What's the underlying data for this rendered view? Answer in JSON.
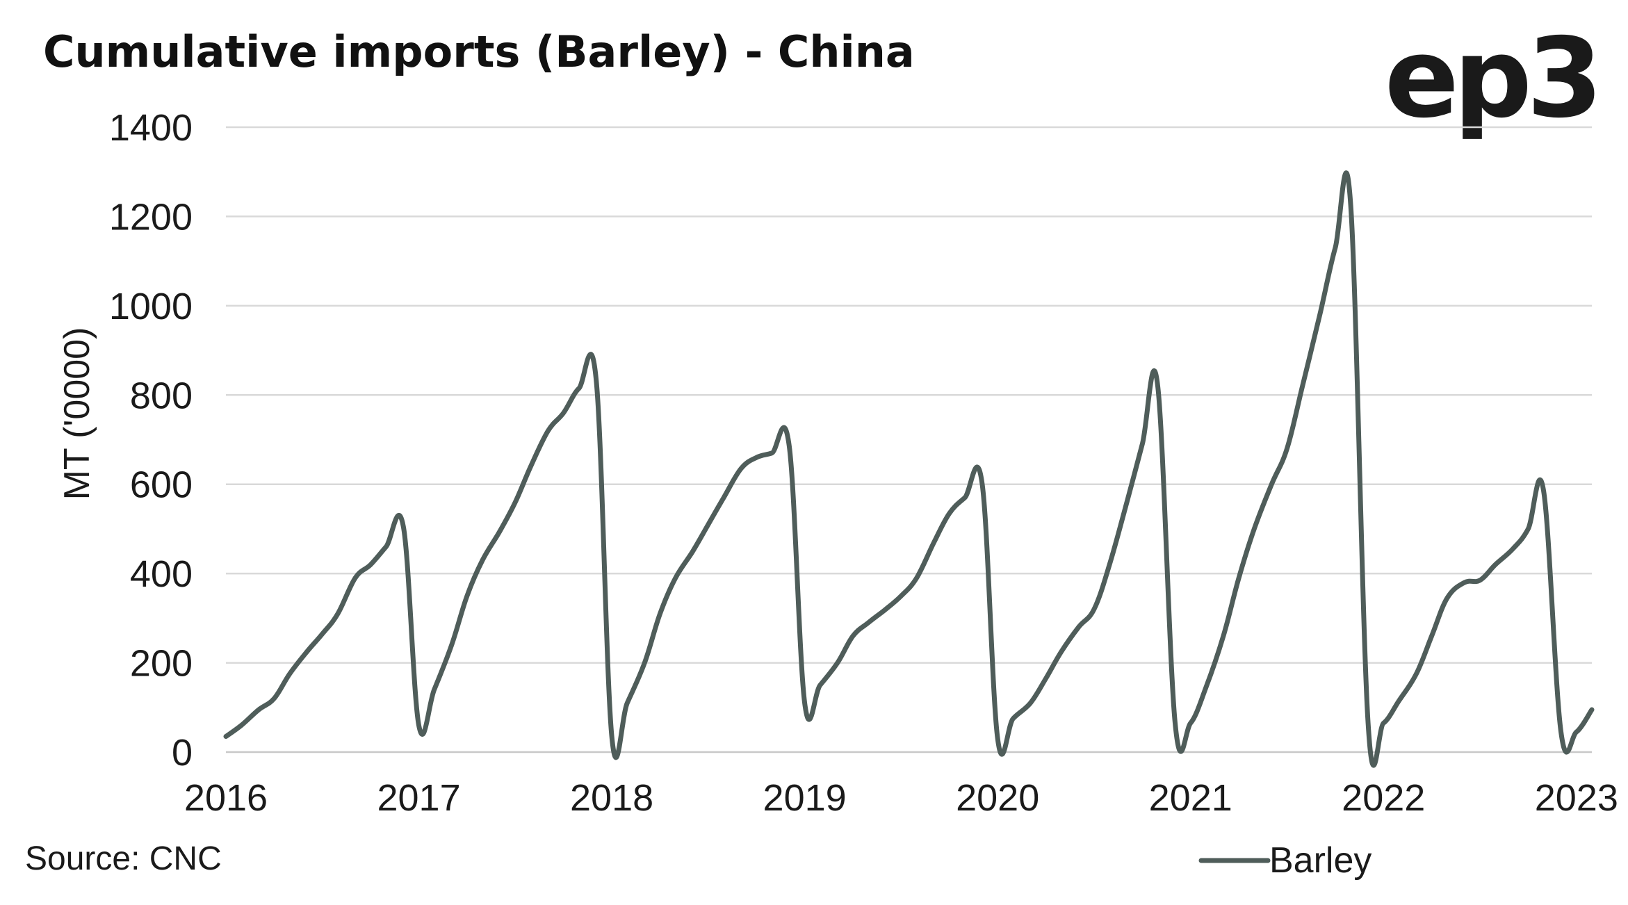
{
  "chart_data": {
    "type": "line",
    "title": "Cumulative imports (Barley) - China",
    "ylabel": "MT ('0000)",
    "xlabel": "",
    "ylim": [
      0,
      1400
    ],
    "yticks": [
      "0",
      "200",
      "400",
      "600",
      "800",
      "1000",
      "1200",
      "1400"
    ],
    "xticks": [
      "2016",
      "2017",
      "2018",
      "2019",
      "2020",
      "2021",
      "2022",
      "2023"
    ],
    "grid": true,
    "legend_position": "bottom-right",
    "series": [
      {
        "name": "Barley",
        "color": "#4f5d5a",
        "x": [
          2016.0,
          2016.08,
          2016.17,
          2016.25,
          2016.33,
          2016.42,
          2016.5,
          2016.58,
          2016.67,
          2016.75,
          2016.83,
          2016.92,
          2017.0,
          2017.08,
          2017.17,
          2017.25,
          2017.33,
          2017.42,
          2017.5,
          2017.58,
          2017.67,
          2017.75,
          2017.83,
          2017.92,
          2018.0,
          2018.08,
          2018.17,
          2018.25,
          2018.33,
          2018.42,
          2018.5,
          2018.58,
          2018.67,
          2018.75,
          2018.83,
          2018.92,
          2019.0,
          2019.08,
          2019.17,
          2019.25,
          2019.33,
          2019.42,
          2019.5,
          2019.58,
          2019.67,
          2019.75,
          2019.83,
          2019.92,
          2020.0,
          2020.08,
          2020.17,
          2020.25,
          2020.33,
          2020.42,
          2020.5,
          2020.58,
          2020.67,
          2020.75,
          2020.83,
          2020.92,
          2021.0,
          2021.08,
          2021.17,
          2021.25,
          2021.33,
          2021.42,
          2021.5,
          2021.58,
          2021.67,
          2021.75,
          2021.83,
          2021.92,
          2022.0,
          2022.08,
          2022.17,
          2022.25,
          2022.33,
          2022.42,
          2022.5,
          2022.58,
          2022.67,
          2022.75,
          2022.83,
          2022.92,
          2023.0,
          2023.08
        ],
        "values": [
          35,
          60,
          95,
          120,
          175,
          225,
          265,
          310,
          390,
          420,
          460,
          505,
          60,
          140,
          240,
          350,
          430,
          495,
          560,
          640,
          720,
          760,
          815,
          830,
          35,
          110,
          200,
          310,
          390,
          450,
          510,
          570,
          635,
          660,
          670,
          685,
          110,
          150,
          200,
          260,
          290,
          320,
          350,
          390,
          470,
          535,
          570,
          600,
          30,
          75,
          110,
          165,
          225,
          280,
          320,
          420,
          560,
          690,
          820,
          65,
          65,
          145,
          260,
          390,
          500,
          600,
          680,
          820,
          980,
          1130,
          1225,
          65,
          65,
          115,
          175,
          260,
          345,
          380,
          385,
          420,
          455,
          500,
          585,
          45,
          45,
          95
        ]
      }
    ]
  },
  "logo_text": "ep3",
  "source": "Source: CNC"
}
